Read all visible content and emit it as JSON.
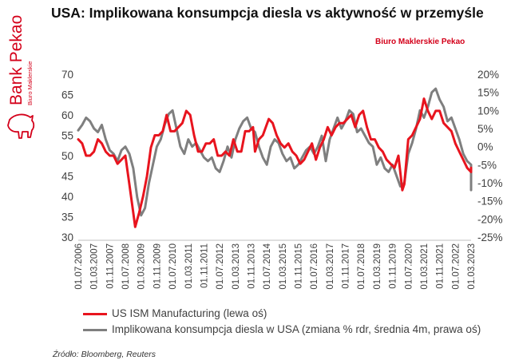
{
  "title": "USA: Implikowana konsumpcja diesla vs aktywność w przemyśle",
  "brand": {
    "name": "Bank Pekao",
    "subname": "Biuro Maklerskie",
    "tagline": "Biuro Maklerskie Pekao",
    "red": "#d4001a"
  },
  "source": "Źródło: Bloomberg, Reuters",
  "chart_data": {
    "type": "line",
    "x_ticks": [
      "01.07.2006",
      "01.03.2007",
      "01.11.2007",
      "01.07.2008",
      "01.03.2009",
      "01.11.2009",
      "01.07.2010",
      "01.03.2011",
      "01.11.2011",
      "01.07.2012",
      "01.03.2013",
      "01.11.2013",
      "01.07.2014",
      "01.03.2015",
      "01.11.2015",
      "01.07.2016",
      "01.03.2017",
      "01.11.2017",
      "01.07.2018",
      "01.03.2019",
      "01.11.2019",
      "01.07.2020",
      "01.03.2021",
      "01.11.2021",
      "01.07.2022",
      "01.03.2023"
    ],
    "y_left": {
      "ticks": [
        "30",
        "35",
        "40",
        "45",
        "50",
        "55",
        "60",
        "65",
        "70"
      ],
      "ylim": [
        30,
        70
      ]
    },
    "y_right": {
      "ticks": [
        "-25%",
        "-20%",
        "-15%",
        "-10%",
        "-5%",
        "0%",
        "5%",
        "10%",
        "15%",
        "20%"
      ],
      "ylim": [
        -25,
        20
      ]
    },
    "grid": false,
    "legend_position": "bottom",
    "series": [
      {
        "name": "US ISM Manufacturing (lewa oś)",
        "axis": "left",
        "color": "#e8141e",
        "points": [
          [
            "2006-07",
            54
          ],
          [
            "2006-09",
            53
          ],
          [
            "2006-11",
            50
          ],
          [
            "2007-01",
            50
          ],
          [
            "2007-03",
            51
          ],
          [
            "2007-05",
            54
          ],
          [
            "2007-07",
            53
          ],
          [
            "2007-09",
            51
          ],
          [
            "2007-11",
            50
          ],
          [
            "2008-01",
            50
          ],
          [
            "2008-03",
            48
          ],
          [
            "2008-05",
            49
          ],
          [
            "2008-07",
            50
          ],
          [
            "2008-09",
            43
          ],
          [
            "2008-11",
            36
          ],
          [
            "2008-12",
            32.5
          ],
          [
            "2009-02",
            36
          ],
          [
            "2009-04",
            40
          ],
          [
            "2009-06",
            45
          ],
          [
            "2009-08",
            52
          ],
          [
            "2009-10",
            55
          ],
          [
            "2009-12",
            55
          ],
          [
            "2010-02",
            56
          ],
          [
            "2010-04",
            60
          ],
          [
            "2010-06",
            56
          ],
          [
            "2010-08",
            56
          ],
          [
            "2010-10",
            57
          ],
          [
            "2010-12",
            58
          ],
          [
            "2011-02",
            61
          ],
          [
            "2011-04",
            60
          ],
          [
            "2011-06",
            55
          ],
          [
            "2011-08",
            51
          ],
          [
            "2011-10",
            51
          ],
          [
            "2011-12",
            53
          ],
          [
            "2012-02",
            53
          ],
          [
            "2012-04",
            54
          ],
          [
            "2012-06",
            50
          ],
          [
            "2012-08",
            50
          ],
          [
            "2012-10",
            51
          ],
          [
            "2012-12",
            50
          ],
          [
            "2013-02",
            54
          ],
          [
            "2013-04",
            51
          ],
          [
            "2013-06",
            51
          ],
          [
            "2013-08",
            56
          ],
          [
            "2013-10",
            56
          ],
          [
            "2013-12",
            57
          ],
          [
            "2014-01",
            51
          ],
          [
            "2014-03",
            54
          ],
          [
            "2014-05",
            55
          ],
          [
            "2014-08",
            59
          ],
          [
            "2014-10",
            58
          ],
          [
            "2014-12",
            55
          ],
          [
            "2015-02",
            53
          ],
          [
            "2015-04",
            52
          ],
          [
            "2015-06",
            53
          ],
          [
            "2015-08",
            51
          ],
          [
            "2015-10",
            50
          ],
          [
            "2015-12",
            48
          ],
          [
            "2016-02",
            49
          ],
          [
            "2016-04",
            51
          ],
          [
            "2016-06",
            53
          ],
          [
            "2016-08",
            49
          ],
          [
            "2016-10",
            52
          ],
          [
            "2016-12",
            54
          ],
          [
            "2017-02",
            57
          ],
          [
            "2017-04",
            55
          ],
          [
            "2017-06",
            57
          ],
          [
            "2017-08",
            58
          ],
          [
            "2017-10",
            58
          ],
          [
            "2017-12",
            59
          ],
          [
            "2018-02",
            60
          ],
          [
            "2018-04",
            57
          ],
          [
            "2018-06",
            60
          ],
          [
            "2018-08",
            61
          ],
          [
            "2018-10",
            57
          ],
          [
            "2018-12",
            54
          ],
          [
            "2019-02",
            54
          ],
          [
            "2019-04",
            52
          ],
          [
            "2019-06",
            51
          ],
          [
            "2019-08",
            49
          ],
          [
            "2019-10",
            48
          ],
          [
            "2019-12",
            47
          ],
          [
            "2020-02",
            50
          ],
          [
            "2020-04",
            41.5
          ],
          [
            "2020-05",
            43
          ],
          [
            "2020-07",
            54
          ],
          [
            "2020-09",
            55
          ],
          [
            "2020-11",
            57
          ],
          [
            "2021-01",
            59
          ],
          [
            "2021-03",
            64
          ],
          [
            "2021-05",
            61
          ],
          [
            "2021-07",
            59
          ],
          [
            "2021-09",
            61
          ],
          [
            "2021-11",
            61
          ],
          [
            "2022-01",
            58
          ],
          [
            "2022-03",
            57
          ],
          [
            "2022-05",
            56
          ],
          [
            "2022-07",
            53
          ],
          [
            "2022-09",
            51
          ],
          [
            "2022-11",
            49
          ],
          [
            "2023-01",
            47
          ],
          [
            "2023-03",
            46
          ],
          [
            "2023-05",
            47
          ],
          [
            "2023-07",
            46
          ],
          [
            "2023-09",
            47
          ]
        ]
      },
      {
        "name": "Implikowana konsumpcja diesla w USA (zmiana % rdr, średnia 4m, prawa oś)",
        "axis": "right",
        "color": "#7f7f7f",
        "points": [
          [
            "2006-07",
            4.5
          ],
          [
            "2006-09",
            6
          ],
          [
            "2006-11",
            8
          ],
          [
            "2007-01",
            7
          ],
          [
            "2007-03",
            5
          ],
          [
            "2007-05",
            4
          ],
          [
            "2007-07",
            6
          ],
          [
            "2007-09",
            2
          ],
          [
            "2007-11",
            -1
          ],
          [
            "2008-01",
            -2
          ],
          [
            "2008-03",
            -4
          ],
          [
            "2008-05",
            -1
          ],
          [
            "2008-07",
            0
          ],
          [
            "2008-09",
            -2
          ],
          [
            "2008-11",
            -6
          ],
          [
            "2009-01",
            -14
          ],
          [
            "2009-03",
            -19
          ],
          [
            "2009-05",
            -17
          ],
          [
            "2009-07",
            -10
          ],
          [
            "2009-09",
            -5
          ],
          [
            "2009-11",
            0
          ],
          [
            "2010-01",
            2
          ],
          [
            "2010-03",
            6
          ],
          [
            "2010-05",
            9
          ],
          [
            "2010-07",
            10
          ],
          [
            "2010-09",
            5
          ],
          [
            "2010-11",
            0
          ],
          [
            "2011-01",
            -2
          ],
          [
            "2011-03",
            2
          ],
          [
            "2011-05",
            0
          ],
          [
            "2011-07",
            1
          ],
          [
            "2011-09",
            -1
          ],
          [
            "2011-11",
            -3
          ],
          [
            "2012-01",
            -4
          ],
          [
            "2012-03",
            -3
          ],
          [
            "2012-05",
            -6
          ],
          [
            "2012-07",
            -7
          ],
          [
            "2012-09",
            -4
          ],
          [
            "2012-11",
            0
          ],
          [
            "2013-01",
            -3
          ],
          [
            "2013-03",
            2
          ],
          [
            "2013-05",
            5
          ],
          [
            "2013-07",
            7
          ],
          [
            "2013-09",
            8
          ],
          [
            "2013-11",
            5
          ],
          [
            "2014-01",
            4
          ],
          [
            "2014-03",
            0
          ],
          [
            "2014-05",
            -3
          ],
          [
            "2014-07",
            -5
          ],
          [
            "2014-09",
            0
          ],
          [
            "2014-11",
            2
          ],
          [
            "2015-01",
            1
          ],
          [
            "2015-03",
            -2
          ],
          [
            "2015-05",
            -4
          ],
          [
            "2015-07",
            -3
          ],
          [
            "2015-09",
            -6
          ],
          [
            "2015-11",
            -5
          ],
          [
            "2016-01",
            -3
          ],
          [
            "2016-03",
            -1
          ],
          [
            "2016-05",
            0
          ],
          [
            "2016-07",
            -2
          ],
          [
            "2016-09",
            0
          ],
          [
            "2016-11",
            3
          ],
          [
            "2017-01",
            -4
          ],
          [
            "2017-03",
            2
          ],
          [
            "2017-05",
            5
          ],
          [
            "2017-07",
            8
          ],
          [
            "2017-09",
            5
          ],
          [
            "2017-11",
            7
          ],
          [
            "2018-01",
            10
          ],
          [
            "2018-03",
            9
          ],
          [
            "2018-05",
            4
          ],
          [
            "2018-07",
            5
          ],
          [
            "2018-09",
            3
          ],
          [
            "2018-11",
            1
          ],
          [
            "2019-01",
            0
          ],
          [
            "2019-03",
            -5
          ],
          [
            "2019-05",
            -3
          ],
          [
            "2019-07",
            -6
          ],
          [
            "2019-09",
            -7
          ],
          [
            "2019-11",
            -5
          ],
          [
            "2020-01",
            -8
          ],
          [
            "2020-03",
            -11
          ],
          [
            "2020-05",
            -10
          ],
          [
            "2020-07",
            -2
          ],
          [
            "2020-09",
            1
          ],
          [
            "2020-11",
            5
          ],
          [
            "2021-01",
            10
          ],
          [
            "2021-03",
            8
          ],
          [
            "2021-05",
            11
          ],
          [
            "2021-07",
            15
          ],
          [
            "2021-09",
            16
          ],
          [
            "2021-11",
            13
          ],
          [
            "2022-01",
            11
          ],
          [
            "2022-03",
            7
          ],
          [
            "2022-05",
            8
          ],
          [
            "2022-07",
            5
          ],
          [
            "2022-09",
            2
          ],
          [
            "2022-11",
            -2
          ],
          [
            "2023-01",
            -4
          ],
          [
            "2023-03",
            -5
          ],
          [
            "2023-05",
            -10
          ],
          [
            "2023-07",
            -12
          ],
          [
            "2023-09",
            -11
          ]
        ]
      }
    ]
  }
}
